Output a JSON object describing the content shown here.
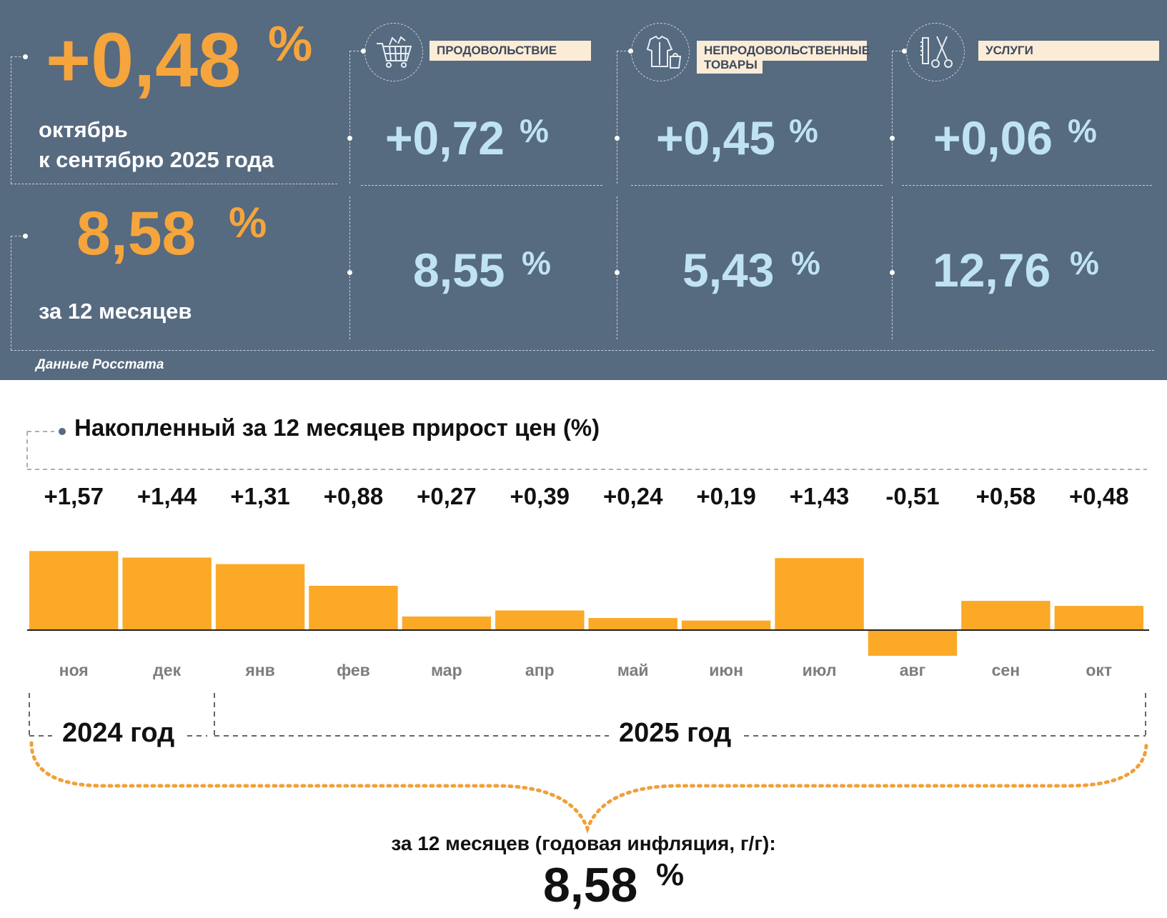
{
  "summary": {
    "monthly": {
      "value": "+0,48",
      "unit": "%",
      "line1": "октябрь",
      "line2": "к сентябрю 2025 года"
    },
    "annual": {
      "value": "8,58",
      "unit": "%",
      "label": "за 12 месяцев"
    },
    "source": "Данные Росстата"
  },
  "categories": [
    {
      "name": "ПРОДОВОЛЬСТВИЕ",
      "icon": "shopping-cart-icon",
      "monthly": "+0,72",
      "annual": "8,55",
      "unit": "%"
    },
    {
      "name_line1": "НЕПРОДОВОЛЬСТВЕННЫЕ",
      "name_line2": "ТОВАРЫ",
      "icon": "clothing-icon",
      "monthly": "+0,45",
      "annual": "5,43",
      "unit": "%"
    },
    {
      "name": "УСЛУГИ",
      "icon": "comb-scissors-icon",
      "monthly": "+0,06",
      "annual": "12,76",
      "unit": "%"
    }
  ],
  "chart_data": {
    "type": "bar",
    "title": "Накопленный за 12 месяцев прирост цен (%)",
    "categories": [
      "ноя",
      "дек",
      "янв",
      "фев",
      "мар",
      "апр",
      "май",
      "июн",
      "июл",
      "авг",
      "сен",
      "окт"
    ],
    "values": [
      1.57,
      1.44,
      1.31,
      0.88,
      0.27,
      0.39,
      0.24,
      0.19,
      1.43,
      -0.51,
      0.58,
      0.48
    ],
    "value_labels": [
      "+1,57",
      "+1,44",
      "+1,31",
      "+0,88",
      "+0,27",
      "+0,39",
      "+0,24",
      "+0,19",
      "+1,43",
      "-0,51",
      "+0,58",
      "+0,48"
    ],
    "ylim": [
      -0.6,
      1.7
    ],
    "years": [
      "2024 год",
      "2025 год"
    ],
    "total_label": "за 12 месяцев (годовая инфляция, г/г):",
    "total_value": "8,58",
    "total_unit": "%"
  },
  "colors": {
    "panel": "#566a80",
    "orange": "#f5a53c",
    "bar": "#fba926",
    "light_blue": "#bfe3f3",
    "label_bg": "#fbecd8"
  }
}
